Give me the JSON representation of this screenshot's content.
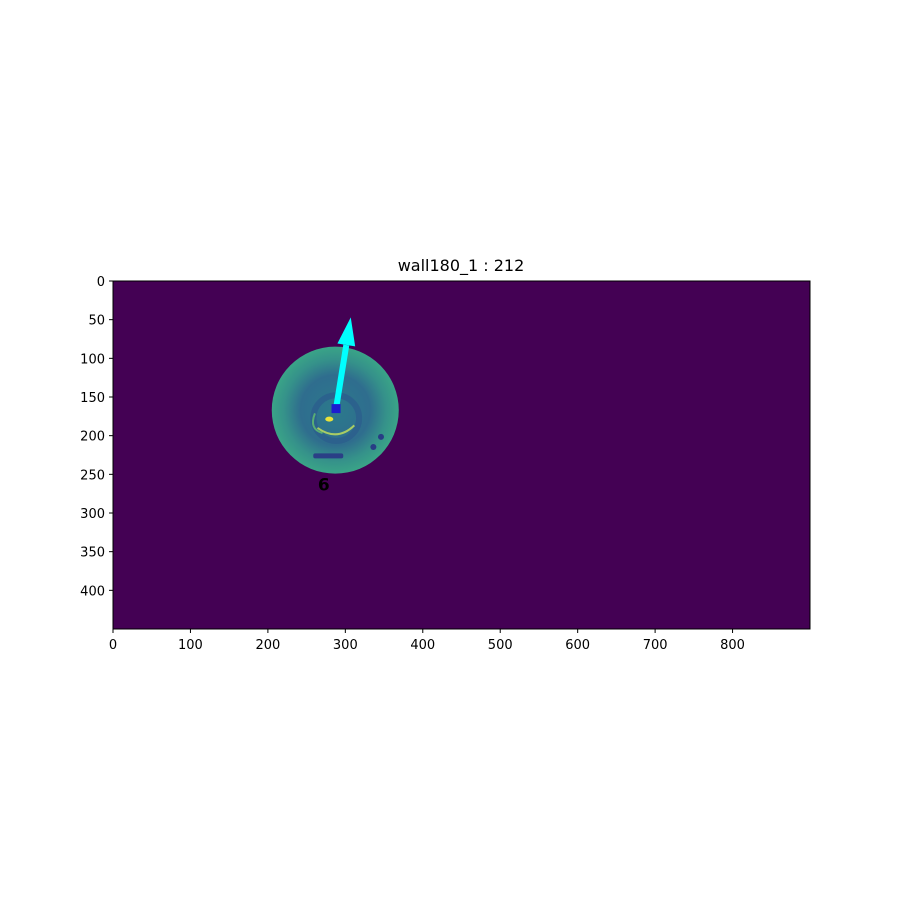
{
  "chart_data": {
    "type": "heatmap",
    "title": "wall180_1 : 212",
    "xlabel": "",
    "ylabel": "",
    "xlim": [
      0,
      900
    ],
    "ylim": [
      450,
      0
    ],
    "x_ticks": [
      0,
      100,
      200,
      300,
      400,
      500,
      600,
      700,
      800
    ],
    "y_ticks": [
      0,
      50,
      100,
      150,
      200,
      250,
      300,
      350,
      400
    ],
    "grid": false,
    "colormap": "viridis",
    "background_color": "#440154",
    "blob": {
      "center": [
        287,
        167
      ],
      "outer_radius": 82,
      "rim_color": "#3a8f8a",
      "ring_color": "#2f6d8e"
    },
    "marker": {
      "x": 288,
      "y": 165,
      "color": "#1c1cd0"
    },
    "arrow": {
      "from": [
        288,
        165
      ],
      "to": [
        307,
        47
      ],
      "color": "#00ffff"
    },
    "annotation": {
      "text": "6",
      "x": 271,
      "y": 262,
      "color": "#ff0000"
    }
  }
}
